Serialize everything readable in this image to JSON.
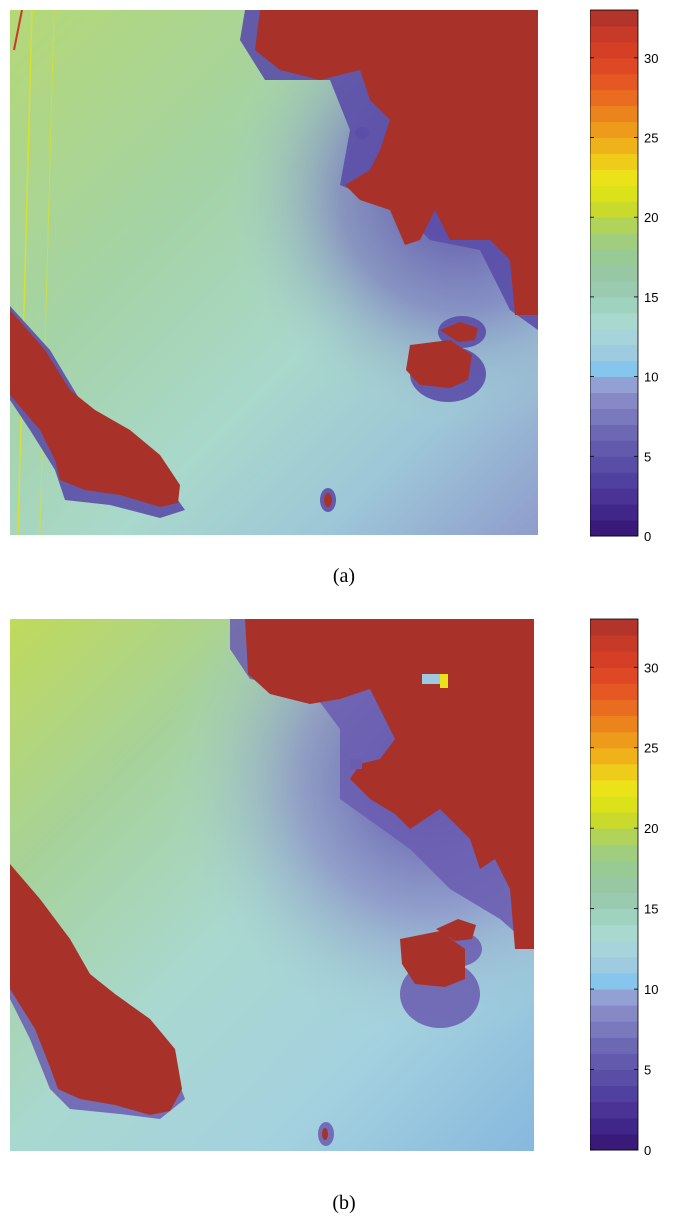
{
  "colorbar": {
    "min": 0,
    "max": 33,
    "ticks": [
      "0",
      "5",
      "10",
      "15",
      "20",
      "25",
      "30"
    ],
    "tick_values": [
      0,
      5,
      10,
      15,
      20,
      25,
      30
    ],
    "colors": [
      "#3a1a78",
      "#41268a",
      "#4a3394",
      "#50409f",
      "#5a4da6",
      "#6359ad",
      "#6c68b4",
      "#7a79be",
      "#8788c6",
      "#93a0d4",
      "#86c6ec",
      "#9fcbe0",
      "#a7d3da",
      "#a9d8cf",
      "#a0d2c0",
      "#9acbb0",
      "#97c8a3",
      "#98cb93",
      "#a0ce7e",
      "#b1d35a",
      "#c9da2d",
      "#dce21a",
      "#ece21a",
      "#f0cc1a",
      "#f0b21a",
      "#ee9a1b",
      "#ec841d",
      "#e96c20",
      "#e65823",
      "#df4824",
      "#d43f26",
      "#c73a28",
      "#b2342a"
    ],
    "land_color": "#a8322a"
  },
  "panels": [
    {
      "id": "a",
      "caption": "(a)",
      "water_base": "#a9d7c4",
      "coast_band": "#5b4ea8"
    },
    {
      "id": "b",
      "caption": "(b)",
      "water_base": "#a6d6d4",
      "coast_band": "#6a5cb0"
    }
  ]
}
